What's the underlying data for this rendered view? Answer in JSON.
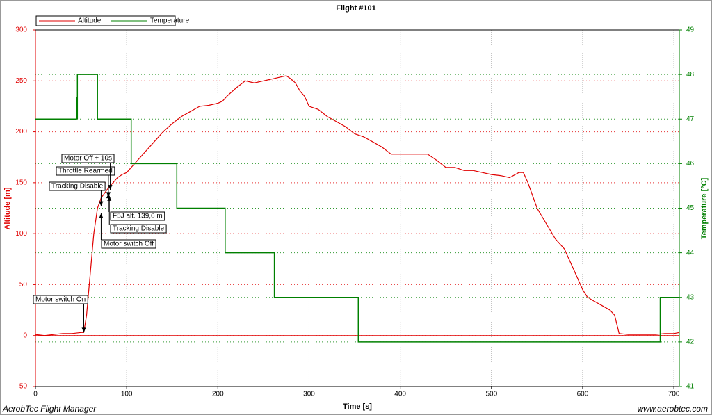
{
  "chart_data": {
    "type": "line",
    "title": "Flight #101",
    "x_label": "Time [s]",
    "y_label": "Altitude [m]",
    "y2_label": "Temperature [°C]",
    "xlim": [
      0,
      706
    ],
    "xticks": [
      0,
      100,
      200,
      300,
      400,
      500,
      600,
      700
    ],
    "ylim": [
      -50,
      300
    ],
    "yticks": [
      -50,
      0,
      50,
      100,
      150,
      200,
      250,
      300
    ],
    "y2lim": [
      41,
      49
    ],
    "y2ticks": [
      41,
      42,
      43,
      44,
      45,
      46,
      47,
      48,
      49
    ],
    "grid": true,
    "series": [
      {
        "name": "Altitude",
        "color": "#e00000",
        "x": [
          0,
          10,
          20,
          30,
          40,
          50,
          53,
          56,
          60,
          64,
          68,
          72,
          76,
          80,
          85,
          90,
          95,
          100,
          105,
          110,
          120,
          130,
          140,
          150,
          160,
          170,
          180,
          190,
          200,
          205,
          210,
          220,
          230,
          240,
          250,
          260,
          270,
          275,
          280,
          285,
          290,
          295,
          300,
          310,
          320,
          330,
          340,
          350,
          360,
          370,
          380,
          390,
          400,
          410,
          420,
          430,
          440,
          450,
          460,
          470,
          480,
          490,
          500,
          510,
          520,
          530,
          535,
          540,
          550,
          560,
          570,
          580,
          590,
          600,
          605,
          610,
          620,
          630,
          635,
          640,
          650,
          680,
          690,
          700,
          706
        ],
        "values": [
          1,
          0,
          1,
          2,
          2,
          3,
          3,
          20,
          60,
          100,
          125,
          135,
          140,
          145,
          150,
          155,
          158,
          160,
          165,
          170,
          180,
          190,
          200,
          208,
          215,
          220,
          225,
          226,
          228,
          230,
          235,
          243,
          250,
          248,
          250,
          252,
          254,
          255,
          252,
          248,
          240,
          235,
          225,
          222,
          215,
          210,
          205,
          198,
          195,
          190,
          185,
          178,
          178,
          178,
          178,
          178,
          172,
          165,
          165,
          162,
          162,
          160,
          158,
          157,
          155,
          160,
          160,
          150,
          125,
          110,
          95,
          85,
          65,
          45,
          38,
          35,
          30,
          25,
          20,
          2,
          1,
          1,
          2,
          2,
          3
        ]
      },
      {
        "name": "Temperature",
        "color": "#008000",
        "axis": "y2",
        "x": [
          0,
          45,
          45,
          46,
          46,
          68,
          68,
          105,
          105,
          155,
          155,
          208,
          208,
          262,
          262,
          354,
          354,
          685,
          685,
          706
        ],
        "values": [
          47,
          47,
          47.5,
          47,
          48,
          48,
          47,
          47,
          46,
          46,
          45,
          45,
          44,
          44,
          43,
          43,
          42,
          42,
          43,
          43
        ]
      }
    ],
    "annotations": [
      {
        "text": "Motor switch On",
        "x": 53,
        "y": 3
      },
      {
        "text": "Motor switch Off",
        "x": 72,
        "y": 120
      },
      {
        "text": "Tracking Disable",
        "x": 72,
        "y": 127
      },
      {
        "text": "Throttle Rearmed",
        "x": 80,
        "y": 136
      },
      {
        "text": "Motor Off + 10s",
        "x": 82,
        "y": 143
      },
      {
        "text": "F5J alt. 139,6 m",
        "x": 80,
        "y": 139.6
      },
      {
        "text": "Tracking Disable",
        "x": 81,
        "y": 137
      }
    ]
  },
  "footer": {
    "left": "AerobTec Flight Manager",
    "right": "www.aerobtec.com"
  }
}
